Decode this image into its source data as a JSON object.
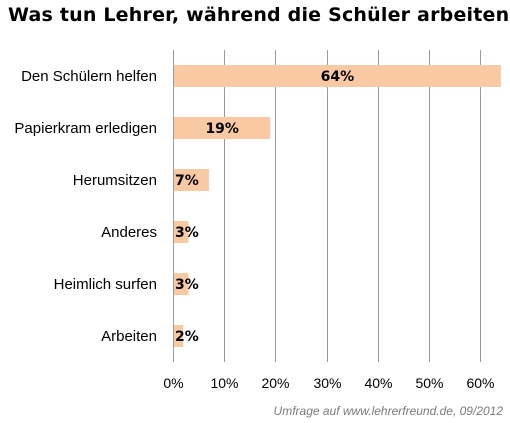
{
  "chart_data": {
    "type": "bar",
    "orientation": "horizontal",
    "title": "Was tun Lehrer, während die Schüler arbeiten?",
    "categories": [
      "Den Schülern helfen",
      "Papierkram erledigen",
      "Herumsitzen",
      "Anderes",
      "Heimlich surfen",
      "Arbeiten"
    ],
    "values": [
      64,
      19,
      7,
      3,
      3,
      2
    ],
    "data_labels": [
      "64%",
      "19%",
      "7%",
      "3%",
      "3%",
      "2%"
    ],
    "x_ticks": [
      "0%",
      "10%",
      "20%",
      "30%",
      "40%",
      "50%",
      "60%"
    ],
    "xlim": [
      0,
      65
    ],
    "grid": true,
    "legend": "none",
    "bar_color": "#f9c9a3",
    "grid_color": "#9a9a9a"
  },
  "source_note": "Umfrage auf www.lehrerfreund.de, 09/2012"
}
